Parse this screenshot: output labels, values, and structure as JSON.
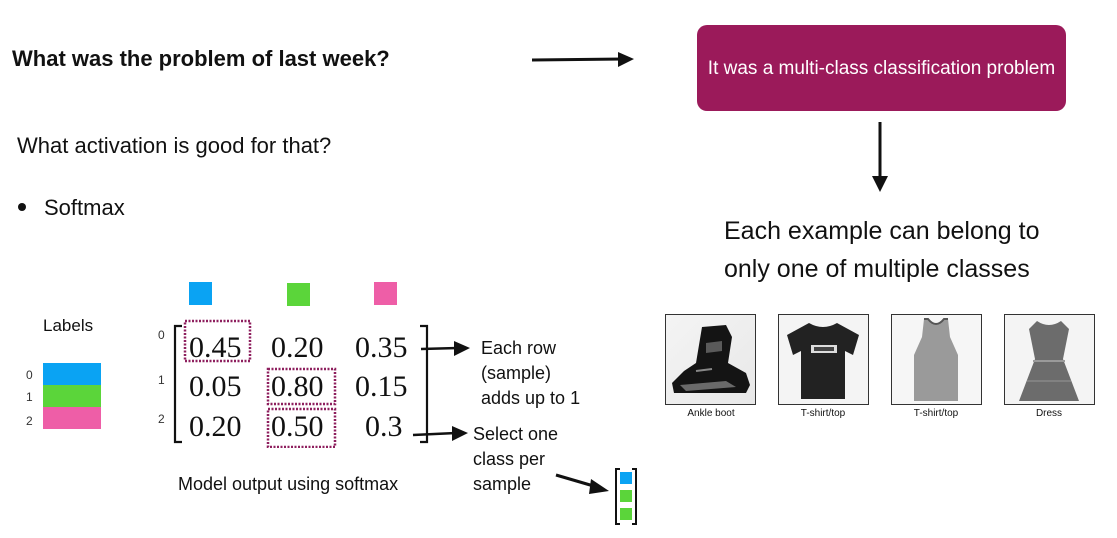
{
  "question": "What was the problem of last week?",
  "answer": "It was a multi-class classification problem",
  "activation_question": "What activation is good for that?",
  "bullet": "Softmax",
  "each_example": [
    "Each example can belong to",
    "only one of multiple classes"
  ],
  "labels": {
    "title": "Labels",
    "items": [
      {
        "index": "0",
        "color": "#0aa3f3"
      },
      {
        "index": "1",
        "color": "#5bd53a"
      },
      {
        "index": "2",
        "color": "#ee5ea7"
      }
    ]
  },
  "matrix": {
    "row_indices": [
      "0",
      "1",
      "2"
    ],
    "rows": [
      [
        "0.45",
        "0.20",
        "0.35"
      ],
      [
        "0.05",
        "0.80",
        "0.15"
      ],
      [
        "0.20",
        "0.50",
        "0.3"
      ]
    ],
    "highlight_color": "#8e1f5e",
    "caption": "Model output using softmax"
  },
  "notes": {
    "row_sum": [
      "Each row",
      "(sample)",
      "adds up to 1"
    ],
    "select": [
      "Select one",
      "class per",
      "sample"
    ]
  },
  "images": [
    {
      "caption": "Ankle boot",
      "icon": "ankle-boot-icon"
    },
    {
      "caption": "T-shirt/top",
      "icon": "tshirt-icon"
    },
    {
      "caption": "T-shirt/top",
      "icon": "tank-top-icon"
    },
    {
      "caption": "Dress",
      "icon": "dress-icon"
    }
  ]
}
